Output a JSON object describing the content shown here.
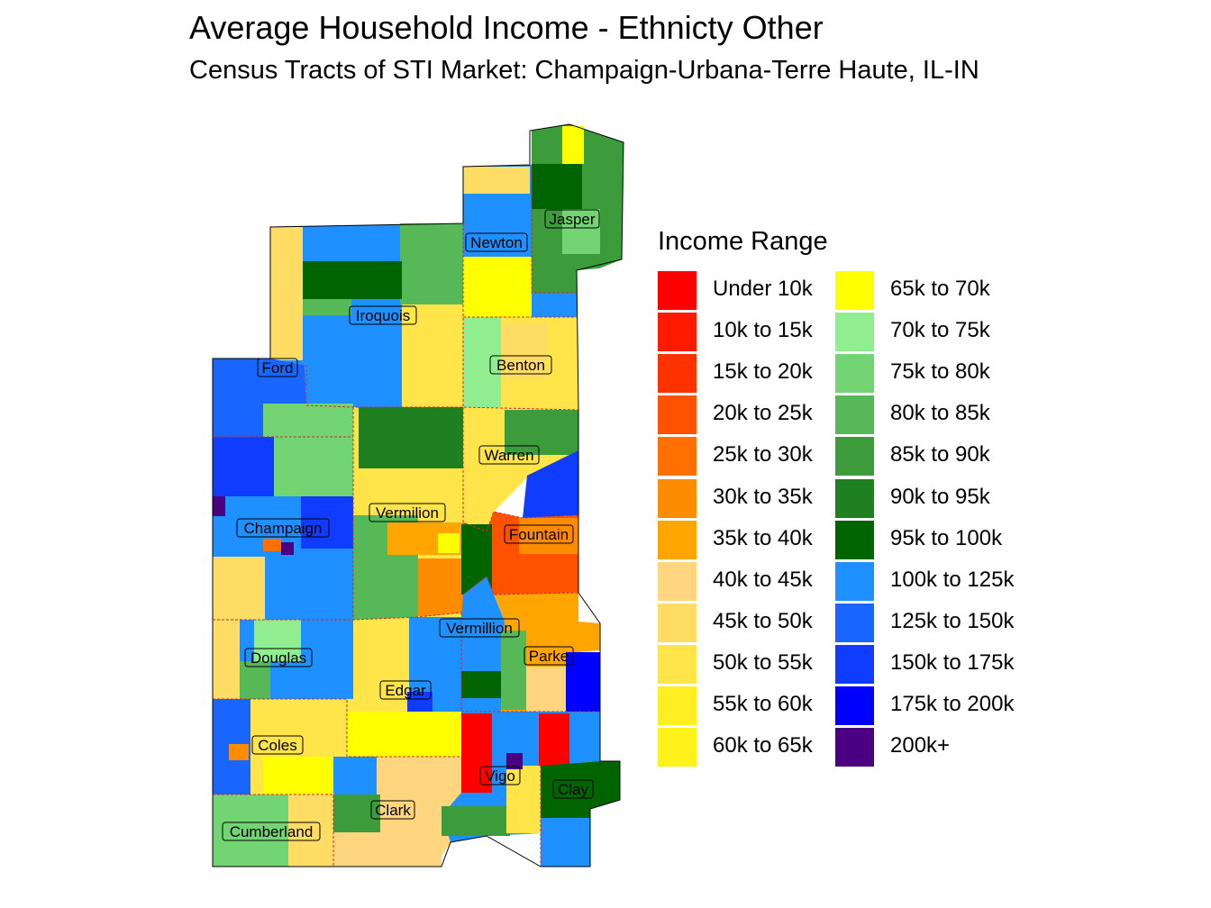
{
  "title": "Average Household Income - Ethnicty Other",
  "subtitle": "Census Tracts of STI Market: Champaign-Urbana-Terre Haute, IL-IN",
  "legend": {
    "title": "Income Range",
    "items": [
      {
        "label": "Under 10k",
        "color": "#FF0000"
      },
      {
        "label": "10k to 15k",
        "color": "#FF1A00"
      },
      {
        "label": "15k to 20k",
        "color": "#FF3300"
      },
      {
        "label": "20k to 25k",
        "color": "#FF5200"
      },
      {
        "label": "25k to 30k",
        "color": "#FF7000"
      },
      {
        "label": "30k to 35k",
        "color": "#FF8C00"
      },
      {
        "label": "35k to 40k",
        "color": "#FFA500"
      },
      {
        "label": "40k to 45k",
        "color": "#FFD580"
      },
      {
        "label": "45k to 50k",
        "color": "#FFDC64"
      },
      {
        "label": "50k to 55k",
        "color": "#FFE44A"
      },
      {
        "label": "55k to 60k",
        "color": "#FFEE22"
      },
      {
        "label": "60k to 65k",
        "color": "#FFF21A"
      },
      {
        "label": "65k to 70k",
        "color": "#FFFF00"
      },
      {
        "label": "70k to 75k",
        "color": "#90EE90"
      },
      {
        "label": "75k to 80k",
        "color": "#72D472"
      },
      {
        "label": "80k to 85k",
        "color": "#56B856"
      },
      {
        "label": "85k to 90k",
        "color": "#3C9C3C"
      },
      {
        "label": "90k to 95k",
        "color": "#1E801E"
      },
      {
        "label": "95k to 100k",
        "color": "#006400"
      },
      {
        "label": "100k to 125k",
        "color": "#1E90FF"
      },
      {
        "label": "125k to 150k",
        "color": "#1866FF"
      },
      {
        "label": "150k to 175k",
        "color": "#0F3CFF"
      },
      {
        "label": "175k to 200k",
        "color": "#0000FF"
      },
      {
        "label": "200k+",
        "color": "#4B0082"
      }
    ]
  },
  "counties": [
    "Jasper",
    "Newton",
    "Iroquois",
    "Benton",
    "Ford",
    "Warren",
    "Vermilion",
    "Champaign",
    "Fountain",
    "Vermillion",
    "Douglas",
    "Parke",
    "Edgar",
    "Coles",
    "Vigo",
    "Clay",
    "Clark",
    "Cumberland"
  ]
}
